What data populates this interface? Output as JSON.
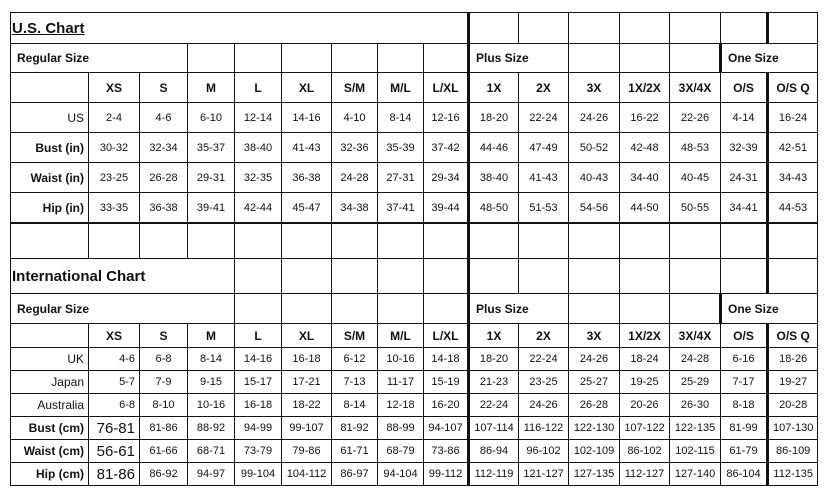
{
  "us_chart": {
    "title": "U.S. Chart",
    "regular_label": "Regular Size",
    "plus_label": "Plus Size",
    "one_label": "One Size",
    "sizes": [
      "XS",
      "S",
      "M",
      "L",
      "XL",
      "S/M",
      "M/L",
      "L/XL",
      "1X",
      "2X",
      "3X",
      "1X/2X",
      "3X/4X",
      "O/S",
      "O/S Q"
    ],
    "rows": [
      {
        "label": "US",
        "values": [
          "2-4",
          "4-6",
          "6-10",
          "12-14",
          "14-16",
          "4-10",
          "8-14",
          "12-16",
          "18-20",
          "22-24",
          "24-26",
          "16-22",
          "22-26",
          "4-14",
          "16-24"
        ]
      },
      {
        "label": "Bust (in)",
        "values": [
          "30-32",
          "32-34",
          "35-37",
          "38-40",
          "41-43",
          "32-36",
          "35-39",
          "37-42",
          "44-46",
          "47-49",
          "50-52",
          "42-48",
          "48-53",
          "32-39",
          "42-51"
        ]
      },
      {
        "label": "Waist (in)",
        "values": [
          "23-25",
          "26-28",
          "29-31",
          "32-35",
          "36-38",
          "24-28",
          "27-31",
          "29-34",
          "38-40",
          "41-43",
          "40-43",
          "34-40",
          "40-45",
          "24-31",
          "34-43"
        ]
      },
      {
        "label": "Hip (in)",
        "values": [
          "33-35",
          "36-38",
          "39-41",
          "42-44",
          "45-47",
          "34-38",
          "37-41",
          "39-44",
          "48-50",
          "51-53",
          "54-56",
          "44-50",
          "50-55",
          "34-41",
          "44-53"
        ]
      }
    ]
  },
  "international_chart": {
    "title": "International Chart",
    "regular_label": "Regular Size",
    "plus_label": "Plus Size",
    "one_label": "One Size",
    "sizes": [
      "XS",
      "S",
      "M",
      "L",
      "XL",
      "S/M",
      "M/L",
      "L/XL",
      "1X",
      "2X",
      "3X",
      "1X/2X",
      "3X/4X",
      "O/S",
      "O/S Q"
    ],
    "rows": [
      {
        "label": "UK",
        "values": [
          "4-6",
          "6-8",
          "8-14",
          "14-16",
          "16-18",
          "6-12",
          "10-16",
          "14-18",
          "18-20",
          "22-24",
          "24-26",
          "18-24",
          "24-28",
          "6-16",
          "18-26"
        ]
      },
      {
        "label": "Japan",
        "values": [
          "5-7",
          "7-9",
          "9-15",
          "15-17",
          "17-21",
          "7-13",
          "11-17",
          "15-19",
          "21-23",
          "23-25",
          "25-27",
          "19-25",
          "25-29",
          "7-17",
          "19-27"
        ]
      },
      {
        "label": "Australia",
        "values": [
          "6-8",
          "8-10",
          "10-16",
          "16-18",
          "18-22",
          "8-14",
          "12-18",
          "16-20",
          "22-24",
          "24-26",
          "26-28",
          "20-26",
          "26-30",
          "8-18",
          "20-28"
        ]
      },
      {
        "label": "Bust (cm)",
        "values": [
          "76-81",
          "81-86",
          "88-92",
          "94-99",
          "99-107",
          "81-92",
          "88-99",
          "94-107",
          "107-114",
          "116-122",
          "122-130",
          "107-122",
          "122-135",
          "81-99",
          "107-130"
        ]
      },
      {
        "label": "Waist (cm)",
        "values": [
          "56-61",
          "61-66",
          "68-71",
          "73-79",
          "79-86",
          "61-71",
          "68-79",
          "73-86",
          "86-94",
          "96-102",
          "102-109",
          "86-102",
          "102-115",
          "61-79",
          "86-109"
        ]
      },
      {
        "label": "Hip (cm)",
        "values": [
          "81-86",
          "86-92",
          "94-97",
          "99-104",
          "104-112",
          "86-97",
          "94-104",
          "99-112",
          "112-119",
          "121-127",
          "127-135",
          "112-127",
          "127-140",
          "86-104",
          "112-135"
        ]
      }
    ]
  }
}
